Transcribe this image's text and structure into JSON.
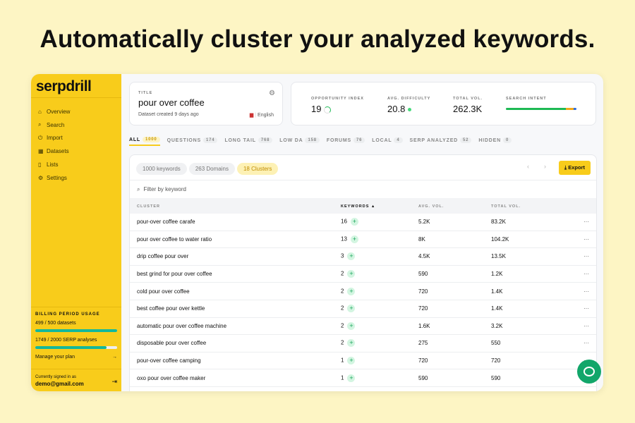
{
  "headline": "Automatically cluster your analyzed keywords.",
  "sidebar": {
    "logo": "serpdrill",
    "items": [
      {
        "icon": "home-icon",
        "glyph": "⌂",
        "label": "Overview"
      },
      {
        "icon": "search-icon",
        "glyph": "⌕",
        "label": "Search"
      },
      {
        "icon": "import-icon",
        "glyph": "⏻",
        "label": "Import"
      },
      {
        "icon": "datasets-icon",
        "glyph": "▦",
        "label": "Datasets"
      },
      {
        "icon": "lists-icon",
        "glyph": "▯",
        "label": "Lists"
      },
      {
        "icon": "gear-icon",
        "glyph": "⚙",
        "label": "Settings"
      }
    ],
    "billing": {
      "heading": "BILLING PERIOD USAGE",
      "datasets": "499 / 500 datasets",
      "datasets_pct": 99.8,
      "serp": "1749 / 2000 SERP analyses",
      "serp_pct": 87.45,
      "manage": "Manage your plan"
    },
    "signed_label": "Currently signed in as",
    "email": "demo@gmail.com"
  },
  "title_card": {
    "label": "TITLE",
    "title": "pour over coffee",
    "created": "Dataset created 9 days ago",
    "language": "English"
  },
  "stats": {
    "opportunity_label": "OPPORTUNITY INDEX",
    "opportunity": "19",
    "difficulty_label": "AVG. DIFFICULTY",
    "difficulty": "20.8",
    "volume_label": "TOTAL VOL.",
    "volume": "262.3K",
    "intent_label": "SEARCH INTENT",
    "intent": [
      {
        "color": "#1db954",
        "pct": 85
      },
      {
        "color": "#f0a81c",
        "pct": 11
      },
      {
        "color": "#2e6fe0",
        "pct": 4
      }
    ]
  },
  "tabs": [
    {
      "label": "ALL",
      "count": "1000"
    },
    {
      "label": "QUESTIONS",
      "count": "174"
    },
    {
      "label": "LONG TAIL",
      "count": "768"
    },
    {
      "label": "LOW DA",
      "count": "158"
    },
    {
      "label": "FORUMS",
      "count": "76"
    },
    {
      "label": "LOCAL",
      "count": "4"
    },
    {
      "label": "SERP ANALYZED",
      "count": "52"
    },
    {
      "label": "HIDDEN",
      "count": "0"
    }
  ],
  "chips": [
    "1000 keywords",
    "263 Domains",
    "18 Clusters"
  ],
  "export": "Export",
  "filter_placeholder": "Filter by keyword",
  "columns": [
    "CLUSTER",
    "KEYWORDS ▲",
    "AVG. VOL.",
    "TOTAL VOL."
  ],
  "rows": [
    {
      "cluster": "pour-over coffee carafe",
      "keywords": "16",
      "avg": "5.2K",
      "total": "83.2K"
    },
    {
      "cluster": "pour over coffee to water ratio",
      "keywords": "13",
      "avg": "8K",
      "total": "104.2K"
    },
    {
      "cluster": "drip coffee pour over",
      "keywords": "3",
      "avg": "4.5K",
      "total": "13.5K"
    },
    {
      "cluster": "best grind for pour over coffee",
      "keywords": "2",
      "avg": "590",
      "total": "1.2K"
    },
    {
      "cluster": "cold pour over coffee",
      "keywords": "2",
      "avg": "720",
      "total": "1.4K"
    },
    {
      "cluster": "best coffee pour over kettle",
      "keywords": "2",
      "avg": "720",
      "total": "1.4K"
    },
    {
      "cluster": "automatic pour over coffee machine",
      "keywords": "2",
      "avg": "1.6K",
      "total": "3.2K"
    },
    {
      "cluster": "disposable pour over coffee",
      "keywords": "2",
      "avg": "275",
      "total": "550"
    },
    {
      "cluster": "pour-over coffee camping",
      "keywords": "1",
      "avg": "720",
      "total": "720"
    },
    {
      "cluster": "oxo pour over coffee maker",
      "keywords": "1",
      "avg": "590",
      "total": "590"
    }
  ]
}
